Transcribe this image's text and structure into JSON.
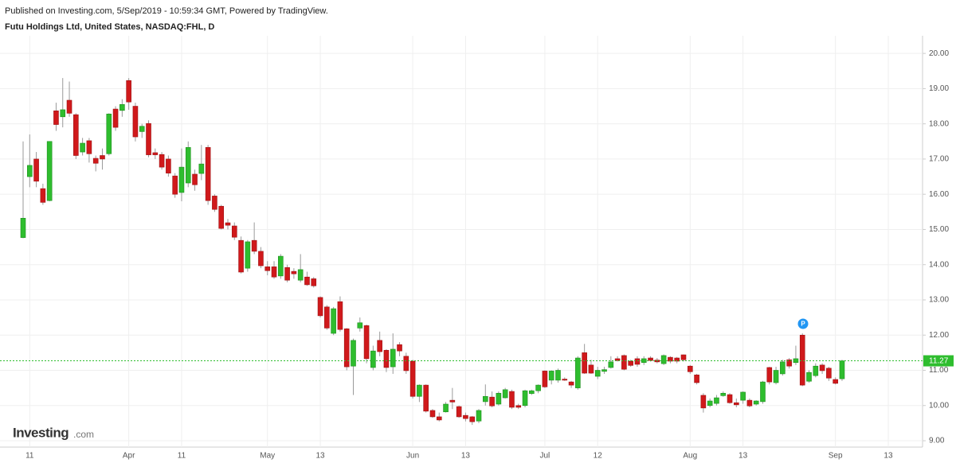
{
  "header": {
    "published": "Published on Investing.com, 5/Sep/2019 - 10:59:34 GMT, Powered by TradingView.",
    "logo_main": "Investing",
    "logo_suffix": ".com"
  },
  "chart_data": {
    "type": "candlestick",
    "title": "Futu Holdings Ltd, United States, NASDAQ:FHL, D",
    "annotation": "P",
    "up_color": "#2ebd2e",
    "down_color": "#d0191b",
    "grid": true,
    "ylim": [
      8.82,
      20.5
    ],
    "yticks": [
      {
        "value": 9,
        "label": "9.00"
      },
      {
        "value": 10,
        "label": "10.00"
      },
      {
        "value": 11,
        "label": "11.00"
      },
      {
        "value": 12,
        "label": "12.00"
      },
      {
        "value": 13,
        "label": "13.00"
      },
      {
        "value": 14,
        "label": "14.00"
      },
      {
        "value": 15,
        "label": "15.00"
      },
      {
        "value": 16,
        "label": "16.00"
      },
      {
        "value": 17,
        "label": "17.00"
      },
      {
        "value": 18,
        "label": "18.00"
      },
      {
        "value": 19,
        "label": "19.00"
      },
      {
        "value": 20,
        "label": "20.00"
      }
    ],
    "categories": [
      null,
      "11",
      null,
      null,
      null,
      null,
      null,
      null,
      null,
      null,
      null,
      null,
      null,
      null,
      null,
      null,
      "Apr",
      null,
      null,
      null,
      null,
      null,
      null,
      null,
      "11",
      null,
      null,
      null,
      null,
      null,
      null,
      null,
      null,
      null,
      null,
      null,
      null,
      "May",
      null,
      null,
      null,
      null,
      null,
      null,
      null,
      "13",
      null,
      null,
      null,
      null,
      null,
      null,
      null,
      null,
      null,
      null,
      null,
      null,
      null,
      "Jun",
      null,
      null,
      null,
      null,
      null,
      null,
      null,
      "13",
      null,
      null,
      null,
      null,
      null,
      null,
      null,
      null,
      null,
      null,
      null,
      "Jul",
      null,
      null,
      null,
      null,
      null,
      null,
      null,
      "12",
      null,
      null,
      null,
      null,
      null,
      null,
      null,
      null,
      null,
      null,
      null,
      null,
      null,
      "Aug",
      null,
      null,
      null,
      null,
      null,
      null,
      null,
      "13",
      null,
      null,
      null,
      null,
      null,
      null,
      null,
      null,
      null,
      null,
      null,
      null,
      null,
      "Sep",
      null,
      null,
      null,
      null,
      null,
      null,
      null,
      "13",
      null,
      null,
      null,
      null,
      null
    ],
    "open": [
      14.77,
      16.5,
      17.0,
      16.16,
      15.82,
      18.37,
      18.2,
      18.67,
      18.26,
      17.2,
      17.52,
      17.02,
      17.1,
      17.15,
      18.42,
      18.38,
      19.23,
      18.5,
      17.78,
      18.01,
      17.18,
      17.13,
      17.0,
      16.52,
      16.05,
      16.32,
      16.57,
      16.59,
      17.33,
      15.95,
      15.66,
      15.19,
      15.1,
      14.69,
      13.9,
      14.69,
      14.38,
      13.94,
      13.94,
      13.68,
      13.92,
      13.81,
      13.56,
      13.65,
      13.6,
      13.07,
      12.8,
      12.05,
      12.95,
      12.18,
      11.12,
      12.2,
      12.27,
      11.08,
      11.85,
      11.57,
      11.1,
      11.73,
      11.4,
      11.26,
      10.26,
      10.58,
      9.86,
      9.68,
      9.82,
      10.15,
      9.97,
      9.72,
      9.68,
      9.56,
      10.11,
      10.24,
      10.04,
      10.22,
      10.4,
      10.0,
      10.0,
      10.34,
      10.42,
      10.98,
      10.72,
      10.72,
      10.75,
      10.67,
      10.5,
      11.5,
      11.15,
      10.83,
      10.97,
      11.08,
      11.33,
      11.42,
      11.26,
      11.33,
      11.22,
      11.35,
      11.29,
      11.19,
      11.37,
      11.35,
      11.44,
      11.12,
      10.87,
      10.29,
      10.0,
      10.06,
      10.28,
      10.31,
      10.08,
      10.15,
      10.15,
      10.04,
      10.11,
      11.08,
      10.65,
      10.9,
      11.3,
      11.22,
      12.0,
      10.69,
      10.85,
      11.15,
      11.06,
      10.74,
      10.76,
      null,
      null,
      null,
      null,
      null,
      null,
      null,
      null,
      null,
      null,
      null,
      null
    ],
    "high": [
      17.5,
      17.7,
      17.2,
      16.3,
      17.5,
      18.6,
      19.3,
      19.2,
      18.3,
      17.6,
      17.6,
      17.1,
      17.3,
      18.3,
      18.5,
      18.7,
      19.3,
      18.6,
      18.0,
      18.1,
      17.3,
      17.2,
      17.1,
      16.6,
      17.3,
      17.5,
      16.7,
      17.4,
      17.4,
      16.0,
      15.7,
      15.3,
      15.2,
      14.8,
      14.7,
      15.2,
      14.5,
      14.1,
      14.1,
      14.3,
      14.0,
      13.9,
      14.3,
      13.8,
      13.65,
      13.1,
      12.85,
      12.8,
      13.1,
      12.2,
      11.9,
      12.5,
      12.3,
      11.7,
      12.1,
      11.6,
      12.05,
      11.8,
      11.5,
      11.3,
      10.6,
      10.6,
      9.9,
      9.8,
      10.1,
      10.5,
      10.0,
      9.8,
      9.7,
      9.9,
      10.6,
      10.4,
      10.4,
      10.5,
      10.45,
      10.05,
      10.45,
      10.45,
      10.6,
      11.0,
      11.0,
      11.05,
      10.8,
      10.7,
      11.4,
      11.75,
      11.3,
      11.1,
      11.1,
      11.4,
      11.4,
      11.45,
      11.3,
      11.4,
      11.4,
      11.4,
      11.35,
      11.45,
      11.4,
      11.38,
      11.45,
      11.15,
      10.9,
      10.35,
      10.2,
      10.3,
      10.4,
      10.35,
      10.2,
      10.4,
      10.2,
      10.15,
      10.7,
      11.1,
      11.1,
      11.3,
      11.35,
      11.7,
      12.05,
      11.0,
      11.2,
      11.2,
      11.1,
      10.8,
      11.3,
      null,
      null,
      null,
      null,
      null,
      null,
      null,
      null,
      null,
      null,
      null,
      null
    ],
    "low": [
      14.75,
      16.2,
      16.2,
      15.7,
      15.8,
      17.8,
      17.9,
      18.2,
      17.0,
      17.1,
      16.9,
      16.65,
      16.7,
      17.1,
      17.8,
      18.2,
      18.4,
      17.5,
      17.6,
      17.05,
      17.0,
      16.7,
      16.5,
      15.9,
      15.8,
      16.2,
      16.1,
      16.4,
      15.7,
      15.5,
      15.0,
      15.0,
      14.7,
      13.75,
      13.8,
      14.3,
      13.9,
      13.7,
      13.6,
      13.6,
      13.5,
      13.6,
      13.5,
      13.4,
      13.35,
      12.5,
      12.15,
      12.0,
      12.1,
      11.0,
      10.3,
      12.1,
      11.2,
      11.0,
      11.4,
      10.95,
      10.9,
      11.4,
      10.9,
      10.2,
      10.1,
      9.8,
      9.65,
      9.55,
      9.8,
      9.9,
      9.65,
      9.55,
      9.45,
      9.5,
      10.0,
      9.95,
      10.0,
      10.2,
      9.9,
      9.9,
      9.95,
      10.3,
      10.35,
      10.5,
      10.6,
      10.65,
      10.7,
      10.5,
      10.45,
      10.9,
      10.9,
      10.75,
      10.9,
      11.05,
      11.25,
      11.0,
      11.1,
      11.1,
      11.15,
      11.25,
      11.2,
      11.15,
      11.2,
      11.2,
      11.25,
      10.9,
      10.6,
      9.8,
      9.95,
      10.0,
      10.25,
      10.05,
      9.95,
      10.05,
      9.95,
      10.0,
      10.05,
      10.6,
      10.6,
      10.85,
      11.05,
      11.15,
      10.55,
      10.65,
      10.8,
      10.9,
      10.7,
      10.6,
      10.7,
      null,
      null,
      null,
      null,
      null,
      null,
      null,
      null,
      null,
      null,
      null,
      null
    ],
    "close": [
      15.32,
      16.82,
      16.37,
      15.77,
      17.5,
      17.98,
      18.4,
      18.3,
      17.1,
      17.45,
      17.15,
      16.88,
      17.0,
      18.28,
      17.9,
      18.55,
      18.62,
      17.63,
      17.93,
      17.12,
      17.12,
      16.77,
      16.6,
      16.0,
      16.77,
      17.33,
      16.27,
      16.86,
      15.82,
      15.57,
      15.03,
      15.12,
      14.78,
      13.79,
      14.65,
      14.38,
      13.97,
      13.83,
      13.65,
      14.24,
      13.56,
      13.74,
      13.86,
      13.43,
      13.4,
      12.55,
      12.2,
      12.75,
      12.16,
      11.1,
      11.85,
      12.35,
      11.33,
      11.55,
      11.53,
      11.08,
      11.6,
      11.55,
      10.99,
      10.26,
      10.58,
      9.84,
      9.68,
      9.59,
      10.04,
      10.1,
      9.68,
      9.63,
      9.54,
      9.86,
      10.26,
      9.99,
      10.35,
      10.45,
      9.95,
      9.95,
      10.42,
      10.42,
      10.58,
      10.53,
      10.98,
      11.0,
      10.72,
      10.58,
      11.35,
      10.92,
      10.92,
      11.0,
      11.02,
      11.24,
      11.28,
      11.03,
      11.14,
      11.17,
      11.33,
      11.28,
      11.24,
      11.42,
      11.26,
      11.26,
      11.3,
      10.96,
      10.65,
      9.93,
      10.13,
      10.22,
      10.35,
      10.08,
      10.02,
      10.38,
      9.99,
      10.13,
      10.67,
      10.67,
      11.0,
      11.24,
      11.12,
      11.33,
      10.58,
      10.94,
      11.12,
      10.99,
      10.78,
      10.63,
      11.27,
      null,
      null,
      null,
      null,
      null,
      null,
      null,
      null,
      null,
      null,
      null,
      null
    ]
  }
}
